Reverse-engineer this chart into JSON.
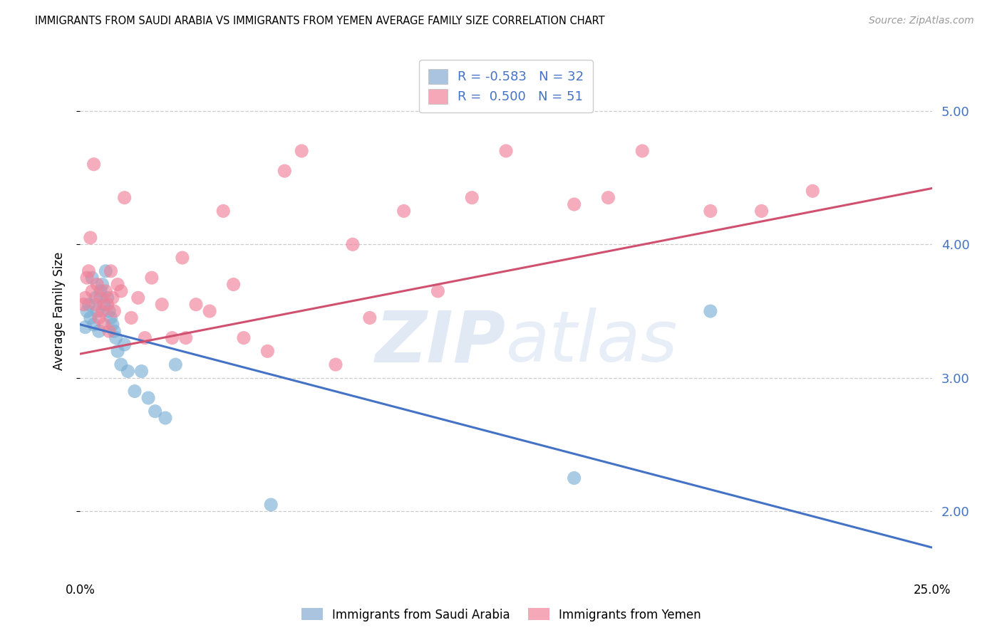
{
  "title": "IMMIGRANTS FROM SAUDI ARABIA VS IMMIGRANTS FROM YEMEN AVERAGE FAMILY SIZE CORRELATION CHART",
  "source": "Source: ZipAtlas.com",
  "ylabel": "Average Family Size",
  "xlim": [
    0.0,
    25.0
  ],
  "ylim": [
    1.55,
    5.45
  ],
  "yticks_right": [
    2.0,
    3.0,
    4.0,
    5.0
  ],
  "legend_color1": "#aac4e0",
  "legend_color2": "#f4a8b8",
  "scatter_color1": "#7bafd4",
  "scatter_color2": "#f08098",
  "line_color1": "#4472c4",
  "line_color2": "#d05070",
  "grid_color": "#cccccc",
  "watermark_zip": "ZIP",
  "watermark_atlas": "atlas",
  "blue_line_x0": 0.0,
  "blue_line_y0": 3.4,
  "blue_line_x1": 25.0,
  "blue_line_y1": 1.73,
  "pink_line_x0": 0.0,
  "pink_line_y0": 3.18,
  "pink_line_x1": 25.0,
  "pink_line_y1": 4.42,
  "saudi_x": [
    0.15,
    0.2,
    0.25,
    0.3,
    0.35,
    0.4,
    0.45,
    0.5,
    0.55,
    0.6,
    0.65,
    0.7,
    0.75,
    0.8,
    0.85,
    0.9,
    0.95,
    1.0,
    1.05,
    1.1,
    1.2,
    1.3,
    1.4,
    1.6,
    1.8,
    2.0,
    2.2,
    2.5,
    2.8,
    5.6,
    14.5,
    18.5
  ],
  "saudi_y": [
    3.38,
    3.5,
    3.55,
    3.45,
    3.75,
    3.4,
    3.6,
    3.5,
    3.35,
    3.65,
    3.7,
    3.55,
    3.8,
    3.6,
    3.5,
    3.45,
    3.4,
    3.35,
    3.3,
    3.2,
    3.1,
    3.25,
    3.05,
    2.9,
    3.05,
    2.85,
    2.75,
    2.7,
    3.1,
    2.05,
    2.25,
    3.5
  ],
  "yemen_x": [
    0.1,
    0.15,
    0.2,
    0.25,
    0.3,
    0.35,
    0.4,
    0.45,
    0.5,
    0.55,
    0.6,
    0.65,
    0.7,
    0.75,
    0.8,
    0.85,
    0.9,
    0.95,
    1.0,
    1.1,
    1.2,
    1.3,
    1.5,
    1.7,
    1.9,
    2.1,
    2.4,
    2.7,
    3.0,
    3.4,
    3.8,
    4.2,
    4.8,
    5.5,
    6.5,
    7.5,
    8.5,
    9.5,
    10.5,
    11.5,
    12.5,
    14.5,
    15.5,
    16.5,
    18.5,
    20.0,
    21.5,
    3.1,
    4.5,
    6.0,
    8.0
  ],
  "yemen_y": [
    3.55,
    3.6,
    3.75,
    3.8,
    4.05,
    3.65,
    4.6,
    3.55,
    3.7,
    3.45,
    3.6,
    3.5,
    3.4,
    3.65,
    3.55,
    3.35,
    3.8,
    3.6,
    3.5,
    3.7,
    3.65,
    4.35,
    3.45,
    3.6,
    3.3,
    3.75,
    3.55,
    3.3,
    3.9,
    3.55,
    3.5,
    4.25,
    3.3,
    3.2,
    4.7,
    3.1,
    3.45,
    4.25,
    3.65,
    4.35,
    4.7,
    4.3,
    4.35,
    4.7,
    4.25,
    4.25,
    4.4,
    3.3,
    3.7,
    4.55,
    4.0
  ]
}
